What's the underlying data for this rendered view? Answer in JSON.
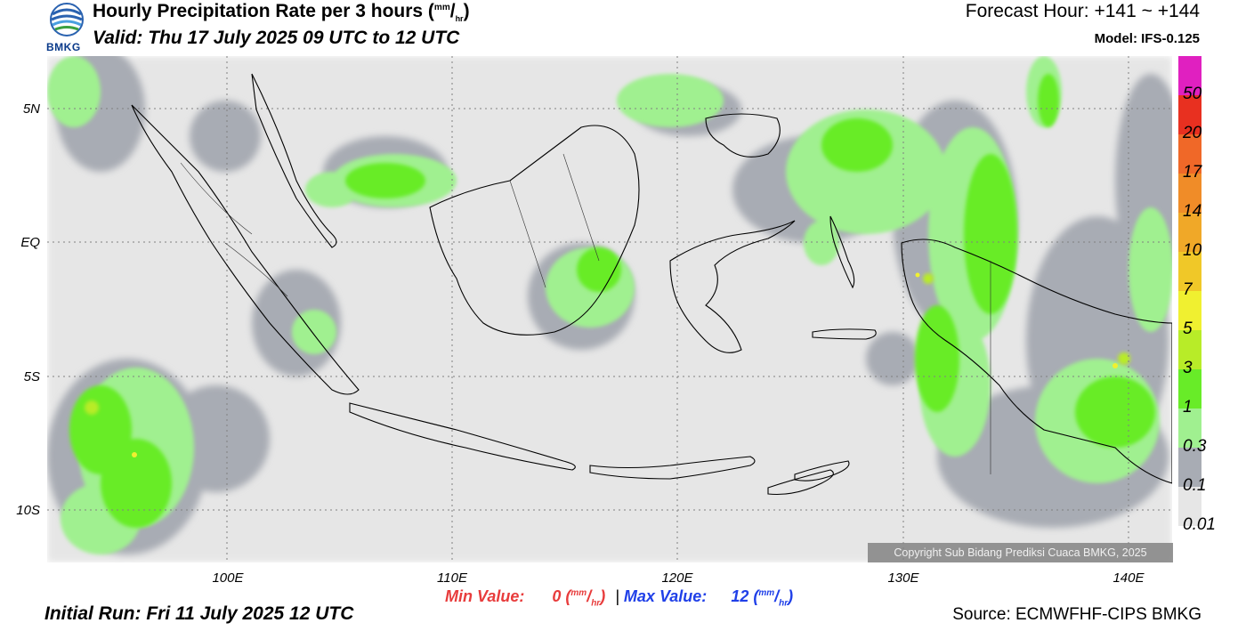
{
  "header": {
    "title": "Hourly Precipitation Rate per 3 hours",
    "title_unit_num": "mm",
    "title_unit_den": "hr",
    "valid": "Valid: Thu 17 July 2025 09 UTC to 12 UTC",
    "forecast_hour": "Forecast Hour: +141 ~ +144",
    "model": "Model: IFS-0.125",
    "logo_text": "BMKG"
  },
  "axes": {
    "lat_labels": [
      "5N",
      "EQ",
      "5S",
      "10S"
    ],
    "lon_labels": [
      "100E",
      "110E",
      "120E",
      "130E",
      "140E"
    ]
  },
  "colorbar": {
    "labels": [
      "50",
      "20",
      "17",
      "14",
      "10",
      "7",
      "5",
      "3",
      "1",
      "0.3",
      "0.1",
      "0.01"
    ],
    "colors": [
      "#e020c0",
      "#e83020",
      "#f06828",
      "#f08c28",
      "#f0a828",
      "#f0c828",
      "#f0f030",
      "#b8ec28",
      "#68ec28",
      "#a0f090",
      "#a8acb4",
      "#e6e6e6"
    ]
  },
  "stats": {
    "min_label": "Min Value:",
    "min_value": "0",
    "max_label": "Max Value:",
    "max_value": "12",
    "unit_num": "mm",
    "unit_den": "hr",
    "separator": "|"
  },
  "footer": {
    "initial_run": "Initial Run: Fri 11 July 2025 12 UTC",
    "source": "Source: ECMWFHF-CIPS BMKG",
    "copyright": "Copyright Sub Bidang Prediksi Cuaca BMKG, 2025"
  },
  "map_colors": {
    "light_gray": "#e6e6e6",
    "dark_gray": "#a8acb4",
    "light_green": "#a0f090",
    "green": "#68ec28",
    "yellow_green": "#b8ec28"
  }
}
